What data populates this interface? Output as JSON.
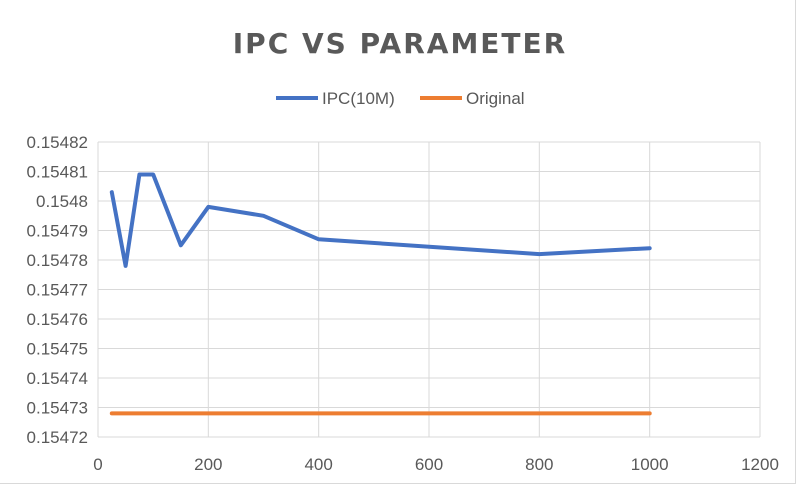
{
  "chart_data": {
    "type": "line",
    "title": "IPC VS PARAMETER",
    "xlabel": "",
    "ylabel": "",
    "xlim": [
      0,
      1200
    ],
    "ylim": [
      0.15472,
      0.15482
    ],
    "x_ticks": [
      0,
      200,
      400,
      600,
      800,
      1000,
      1200
    ],
    "y_ticks": [
      0.15472,
      0.15473,
      0.15474,
      0.15475,
      0.15476,
      0.15477,
      0.15478,
      0.15479,
      0.1548,
      0.15481,
      0.15482
    ],
    "x_tick_labels": [
      "0",
      "200",
      "400",
      "600",
      "800",
      "1000",
      "1200"
    ],
    "y_tick_labels": [
      "0.15472",
      "0.15473",
      "0.15474",
      "0.15475",
      "0.15476",
      "0.15477",
      "0.15478",
      "0.15479",
      "0.1548",
      "0.15481",
      "0.15482"
    ],
    "grid": true,
    "legend_position": "top",
    "series": [
      {
        "name": "IPC(10M)",
        "color": "#4472c4",
        "x": [
          25,
          50,
          75,
          100,
          150,
          200,
          300,
          400,
          800,
          1000
        ],
        "y": [
          0.154803,
          0.154778,
          0.154809,
          0.154809,
          0.154785,
          0.154798,
          0.154795,
          0.154787,
          0.154782,
          0.154784
        ]
      },
      {
        "name": "Original",
        "color": "#ed7d31",
        "x": [
          25,
          1000
        ],
        "y": [
          0.154728,
          0.154728
        ]
      }
    ]
  }
}
